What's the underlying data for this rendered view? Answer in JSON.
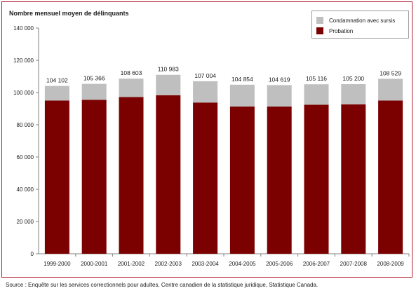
{
  "chart_data": {
    "type": "bar",
    "stacked": true,
    "ylabel": "Nombre mensuel moyen de délinquants",
    "xlabel": "",
    "ylim": [
      0,
      140000
    ],
    "yticks": [
      0,
      20000,
      40000,
      60000,
      80000,
      100000,
      120000,
      140000
    ],
    "ytick_labels": [
      "0",
      "20 000",
      "40 000",
      "60 000",
      "80 000",
      "100 000",
      "120 000",
      "140 000"
    ],
    "categories": [
      "1999-2000",
      "2000-2001",
      "2001-2002",
      "2002-2003",
      "2003-2004",
      "2004-2005",
      "2005-2006",
      "2006-2007",
      "2007-2008",
      "2008-2009"
    ],
    "series": [
      {
        "name": "Probation",
        "color": "#7b0000",
        "values": [
          95000,
          95500,
          97200,
          98300,
          93800,
          91300,
          91300,
          92400,
          92700,
          95000
        ]
      },
      {
        "name": "Condamnation avec sursis",
        "color": "#bfbfbf",
        "values": [
          9102,
          9866,
          11403,
          12683,
          13204,
          13554,
          13319,
          12716,
          12500,
          13529
        ]
      }
    ],
    "totals": [
      104102,
      105366,
      108603,
      110983,
      107004,
      104854,
      104619,
      105116,
      105200,
      108529
    ],
    "total_labels": [
      "104 102",
      "105 366",
      "108 603",
      "110 983",
      "107 004",
      "104 854",
      "104 619",
      "105 116",
      "105 200",
      "108 529"
    ],
    "legend": {
      "placement": "top-right",
      "entries": [
        "Condamnation avec sursis",
        "Probation"
      ]
    },
    "grid": false
  },
  "source_text": "Source : Enquête sur les services correctionnels pour adultes, Centre canadien de la statistique juridique, Statistique Canada."
}
